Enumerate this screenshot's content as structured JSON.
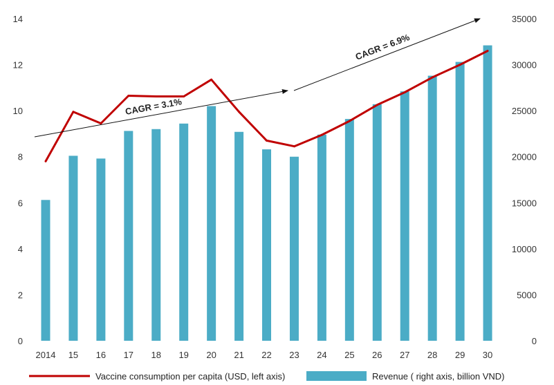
{
  "chart_data": {
    "type": "bar",
    "categories": [
      "2014",
      "15",
      "16",
      "17",
      "18",
      "19",
      "20",
      "21",
      "22",
      "23",
      "24",
      "25",
      "26",
      "27",
      "28",
      "29",
      "30"
    ],
    "series": [
      {
        "name": "Revenue ( right axis, billion VND)",
        "type": "bar",
        "axis": "right",
        "color": "#4bacc6",
        "values": [
          15300,
          20100,
          19800,
          22800,
          23000,
          23600,
          25500,
          22700,
          20800,
          20000,
          22400,
          24100,
          25700,
          27100,
          28800,
          30300,
          32100
        ]
      },
      {
        "name": "Vaccine consumption per capita (USD, left axis)",
        "type": "line",
        "axis": "left",
        "color": "#c00000",
        "values": [
          7.8,
          9.95,
          9.45,
          10.65,
          10.62,
          10.62,
          11.35,
          9.95,
          8.7,
          8.45,
          8.95,
          9.55,
          10.25,
          10.8,
          11.45,
          12.0,
          12.6
        ]
      }
    ],
    "left_axis": {
      "ylim": [
        0,
        14
      ],
      "ticks": [
        "0",
        "2",
        "4",
        "6",
        "8",
        "10",
        "12",
        "14"
      ]
    },
    "right_axis": {
      "ylim": [
        0,
        35000
      ],
      "ticks": [
        "0",
        "5000",
        "10000",
        "15000",
        "20000",
        "25000",
        "30000",
        "35000"
      ]
    },
    "annotations": [
      {
        "label": "CAGR = 3.1%"
      },
      {
        "label": "CAGR = 6.9%"
      }
    ],
    "grid": false,
    "legend_position": "bottom"
  }
}
